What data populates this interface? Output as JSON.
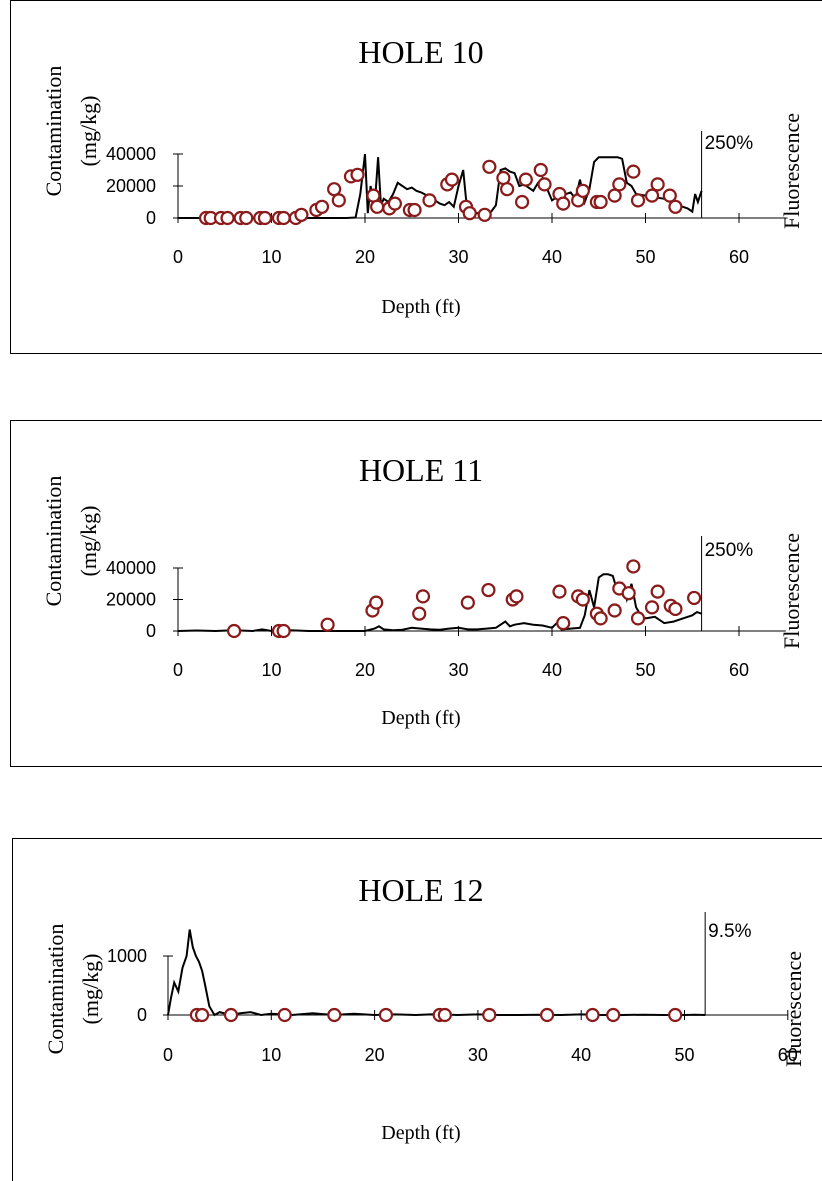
{
  "chart_data": [
    {
      "type": "scatter",
      "title": "HOLE 10",
      "xlabel": "Depth (ft)",
      "ylabel": "Contamination",
      "ylabel_unit": "(mg/kg)",
      "y2label": "Fluorescence",
      "fluor_max_label": "250%",
      "xlim": [
        0,
        65
      ],
      "ylim": [
        0,
        40000
      ],
      "xticks": [
        "0",
        "10",
        "20",
        "30",
        "40",
        "50",
        "60"
      ],
      "yticks": [
        "0",
        "20000",
        "40000"
      ],
      "fluor_end_depth": 56,
      "colors": {
        "marker": "#8b1a1a",
        "line": "#000000"
      },
      "fluorescence": {
        "x": [
          0,
          2,
          4,
          6,
          8,
          10,
          12,
          14,
          16,
          18,
          19,
          19.5,
          20,
          20.3,
          20.6,
          21,
          21.4,
          21.7,
          22,
          22.5,
          23,
          23.5,
          24,
          24.5,
          25,
          25.5,
          26,
          27,
          28,
          28.5,
          29,
          29.5,
          30,
          30.5,
          30.8,
          31,
          31.5,
          32,
          32.5,
          33,
          33.5,
          34,
          34.5,
          35,
          35.5,
          36,
          36.5,
          37,
          37.5,
          38,
          38.5,
          39,
          39.5,
          40,
          40.5,
          41,
          42,
          42.5,
          43,
          43.5,
          44,
          44.5,
          45,
          45.5,
          46,
          46.5,
          47,
          47.5,
          48,
          48.5,
          49,
          50,
          51,
          52,
          53,
          54,
          54.5,
          55,
          55.3,
          55.6,
          56
        ],
        "y": [
          0,
          0,
          0,
          0,
          0,
          0,
          0,
          0,
          0,
          0,
          300,
          15000,
          40000,
          3000,
          20000,
          5000,
          38000,
          8000,
          12000,
          10000,
          15000,
          22000,
          20000,
          18000,
          19000,
          17000,
          16000,
          13000,
          9000,
          8000,
          10000,
          7000,
          20000,
          30000,
          12000,
          5000,
          4000,
          3000,
          2000,
          2500,
          4000,
          8000,
          30000,
          31000,
          29000,
          28000,
          20000,
          21000,
          19000,
          17000,
          22000,
          25000,
          18000,
          11000,
          13000,
          14000,
          16000,
          12000,
          24000,
          10000,
          18000,
          35000,
          38000,
          38000,
          38000,
          38000,
          38000,
          37000,
          22000,
          20000,
          15000,
          14000,
          13000,
          12000,
          9000,
          7000,
          6000,
          4000,
          15000,
          10000,
          17000
        ]
      },
      "samples": {
        "x": [
          3,
          3.5,
          4.6,
          5.3,
          6.7,
          7.3,
          8.8,
          9.3,
          10.8,
          11.3,
          12.6,
          13.2,
          14.8,
          15.4,
          16.7,
          17.2,
          18.5,
          19.2,
          20.9,
          21.3,
          22.6,
          23.2,
          24.8,
          25.3,
          26.9,
          28.8,
          29.3,
          30.8,
          31.2,
          32.8,
          33.3,
          34.8,
          35.2,
          36.8,
          37.2,
          38.8,
          39.2,
          40.8,
          41.2,
          42.8,
          43.3,
          44.8,
          45.2,
          46.7,
          47.2,
          48.7,
          49.2,
          50.7,
          51.3,
          52.6,
          53.2
        ],
        "y": [
          0,
          0,
          0,
          0,
          0,
          0,
          0,
          0,
          0,
          0,
          0,
          2000,
          5000,
          7000,
          18000,
          11000,
          26000,
          27000,
          14000,
          7000,
          6000,
          9000,
          5000,
          5000,
          11000,
          21000,
          24000,
          7000,
          3000,
          2000,
          32000,
          25000,
          18000,
          10000,
          24000,
          30000,
          21000,
          15000,
          9000,
          11000,
          17000,
          10000,
          10000,
          14000,
          21000,
          29000,
          11000,
          14000,
          21000,
          14000,
          7000
        ]
      }
    },
    {
      "type": "scatter",
      "title": "HOLE 11",
      "xlabel": "Depth (ft)",
      "ylabel": "Contamination",
      "ylabel_unit": "(mg/kg)",
      "y2label": "Fluorescence",
      "fluor_max_label": "250%",
      "xlim": [
        0,
        65
      ],
      "ylim": [
        0,
        40000
      ],
      "xticks": [
        "0",
        "10",
        "20",
        "30",
        "40",
        "50",
        "60"
      ],
      "yticks": [
        "0",
        "20000",
        "40000"
      ],
      "fluor_end_depth": 56,
      "colors": {
        "marker": "#8b1a1a",
        "line": "#000000"
      },
      "fluorescence": {
        "x": [
          0,
          2,
          4,
          6,
          8,
          9,
          10,
          11,
          12,
          14,
          16,
          18,
          20,
          21,
          21.5,
          22,
          23,
          24,
          25,
          26,
          27,
          28,
          29,
          30,
          31,
          32,
          33,
          34,
          35,
          35.5,
          36,
          37,
          38,
          39,
          40,
          40.5,
          41,
          42,
          43,
          43.5,
          44,
          44.5,
          45,
          45.5,
          46,
          46.5,
          47,
          47.5,
          48,
          48.5,
          49,
          49.5,
          50,
          51,
          52,
          53,
          54,
          55,
          55.5,
          56
        ],
        "y": [
          0,
          300,
          0,
          500,
          0,
          1000,
          0,
          0,
          500,
          0,
          0,
          0,
          0,
          1500,
          3000,
          1000,
          500,
          800,
          2000,
          1500,
          1000,
          800,
          1500,
          2000,
          1000,
          1000,
          1500,
          2000,
          6000,
          3000,
          4000,
          5000,
          4000,
          3500,
          2000,
          5000,
          1000,
          1500,
          2000,
          10000,
          26000,
          15000,
          34000,
          36000,
          36000,
          35000,
          25000,
          30000,
          20000,
          30000,
          15000,
          10000,
          8000,
          9000,
          5000,
          6000,
          8000,
          10000,
          12000,
          11000
        ]
      },
      "samples": {
        "x": [
          6,
          10.8,
          11.3,
          16,
          20.8,
          21.2,
          25.8,
          26.2,
          31,
          33.2,
          35.8,
          36.2,
          40.8,
          41.2,
          42.8,
          43.3,
          44.8,
          45.2,
          46.7,
          47.2,
          48.2,
          48.7,
          49.2,
          50.7,
          51.3,
          52.7,
          53.2,
          55.2
        ],
        "y": [
          0,
          0,
          0,
          4000,
          13000,
          18000,
          11000,
          22000,
          18000,
          26000,
          20000,
          22000,
          25000,
          5000,
          22000,
          20000,
          11000,
          8000,
          13000,
          27000,
          24000,
          41000,
          8000,
          15000,
          25000,
          16000,
          14000,
          21000
        ]
      }
    },
    {
      "type": "scatter",
      "title": "HOLE 12",
      "xlabel": "Depth (ft)",
      "ylabel": "Contamination",
      "ylabel_unit": "(mg/kg)",
      "y2label": "Fluorescence",
      "fluor_max_label": "9.5%",
      "xlim": [
        0,
        60
      ],
      "ylim": [
        0,
        1500
      ],
      "xticks": [
        "0",
        "10",
        "20",
        "30",
        "40",
        "50",
        "60"
      ],
      "yticks": [
        "0",
        "1000"
      ],
      "fluor_end_depth": 52,
      "colors": {
        "marker": "#8b1a1a",
        "line": "#000000"
      },
      "fluorescence": {
        "x": [
          0,
          0.3,
          0.6,
          1,
          1.4,
          1.8,
          2.1,
          2.4,
          2.7,
          3,
          3.3,
          3.6,
          4,
          4.5,
          5,
          6,
          7,
          8,
          9,
          10,
          12,
          14,
          16,
          18,
          20,
          22,
          24,
          26,
          28,
          30,
          32,
          34,
          36,
          38,
          40,
          42,
          44,
          46,
          48,
          50,
          51,
          52
        ],
        "y": [
          0,
          300,
          550,
          400,
          800,
          1000,
          1450,
          1150,
          1000,
          900,
          750,
          500,
          150,
          0,
          50,
          0,
          30,
          50,
          0,
          20,
          0,
          30,
          0,
          20,
          0,
          10,
          0,
          15,
          0,
          10,
          0,
          0,
          5,
          0,
          10,
          0,
          0,
          5,
          0,
          0,
          5,
          0
        ]
      },
      "samples": {
        "x": [
          2.8,
          3.3,
          6.1,
          11.3,
          16.1,
          21.1,
          26.3,
          26.8,
          31.1,
          36.7,
          41.1,
          43.1,
          49.1
        ],
        "y": [
          0,
          0,
          0,
          0,
          0,
          0,
          0,
          0,
          0,
          0,
          0,
          0,
          0
        ]
      }
    }
  ]
}
